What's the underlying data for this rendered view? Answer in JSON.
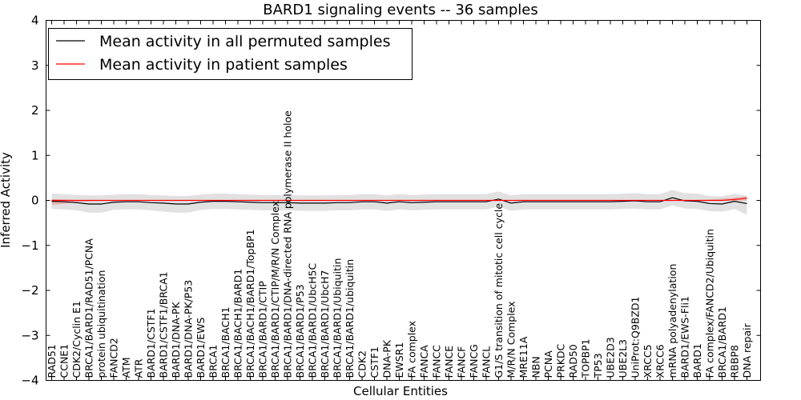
{
  "chart_data": {
    "type": "line",
    "title": "BARD1 signaling events -- 36 samples",
    "xlabel": "Cellular Entities",
    "ylabel": "Inferred Activity",
    "ylim": [
      -4,
      4
    ],
    "yticks": [
      -4,
      -3,
      -2,
      -1,
      0,
      1,
      2,
      3,
      4
    ],
    "ytick_labels": [
      "−4",
      "−3",
      "−2",
      "−1",
      "0",
      "1",
      "2",
      "3",
      "4"
    ],
    "legend_position": "top-left",
    "grid": false,
    "categories": [
      "RAD51",
      "CCNE1",
      "CDK2/Cyclin E1",
      "BRCA1/BARD1/RAD51/PCNA",
      "protein ubiquitination",
      "FANCD2",
      "ATM",
      "ATR",
      "BARD1/CSTF1",
      "BARD1/CSTF1/BRCA1",
      "BARD1/DNA-PK",
      "BARD1/DNA-PK/P53",
      "BARD1/EWS",
      "BRCA1",
      "BRCA1/BACH1",
      "BRCA1/BACH1/BARD1",
      "BRCA1/BACH1/BARD1/TopBP1",
      "BRCA1/BARD1/CTIP",
      "BRCA1/BARD1/CTIP/M/R/N Complex",
      "BRCA1/BARD1/DNA-directed RNA polymerase II holoe",
      "BRCA1/BARD1/P53",
      "BRCA1/BARD1/UbcH5C",
      "BRCA1/BARD1/UbcH7",
      "BRCA1/BARD1/Ubiquitin",
      "BRCA1/BARD1/ubiquitin",
      "CDK2",
      "CSTF1",
      "DNA-PK",
      "EWSR1",
      "FA complex",
      "FANCA",
      "FANCC",
      "FANCE",
      "FANCF",
      "FANCG",
      "FANCL",
      "G1/S transition of mitotic cell cycle",
      "M/R/N Complex",
      "MRE11A",
      "NBN",
      "PCNA",
      "PRKDC",
      "RAD50",
      "TOPBP1",
      "TP53",
      "UBE2D3",
      "UBE2L3",
      "UniProt:Q9BZD1",
      "XRCC5",
      "XRCC6",
      "mRNA polyadenylation",
      "BARD1/EWS-Fli1",
      "BARD1",
      "FA complex/FANCD2/Ubiquitin",
      "BRCA1/BARD1",
      "RBBP8",
      "DNA repair"
    ],
    "series": [
      {
        "name": "Mean activity in all permuted samples",
        "color": "#000000",
        "values": [
          -0.02,
          -0.03,
          -0.05,
          -0.08,
          -0.08,
          -0.04,
          -0.03,
          -0.03,
          -0.05,
          -0.06,
          -0.08,
          -0.08,
          -0.04,
          -0.02,
          -0.02,
          -0.03,
          -0.04,
          -0.05,
          -0.05,
          -0.05,
          -0.06,
          -0.06,
          -0.06,
          -0.05,
          -0.05,
          -0.03,
          -0.03,
          -0.06,
          -0.03,
          -0.05,
          -0.04,
          -0.03,
          -0.03,
          -0.03,
          -0.03,
          -0.03,
          0.03,
          -0.06,
          -0.03,
          -0.03,
          -0.03,
          -0.03,
          -0.03,
          -0.03,
          -0.03,
          -0.03,
          -0.02,
          -0.01,
          -0.03,
          -0.03,
          0.06,
          -0.01,
          -0.02,
          -0.07,
          -0.08,
          -0.02,
          -0.07
        ],
        "band_upper": [
          0.15,
          0.14,
          0.12,
          0.11,
          0.11,
          0.13,
          0.14,
          0.14,
          0.12,
          0.11,
          0.1,
          0.1,
          0.13,
          0.15,
          0.15,
          0.14,
          0.13,
          0.12,
          0.12,
          0.12,
          0.11,
          0.11,
          0.11,
          0.12,
          0.12,
          0.14,
          0.14,
          0.11,
          0.14,
          0.12,
          0.13,
          0.14,
          0.14,
          0.14,
          0.14,
          0.14,
          0.2,
          0.11,
          0.14,
          0.14,
          0.14,
          0.14,
          0.14,
          0.14,
          0.14,
          0.14,
          0.15,
          0.16,
          0.14,
          0.14,
          0.23,
          0.16,
          0.15,
          0.1,
          0.09,
          0.15,
          0.1
        ],
        "band_lower": [
          -0.19,
          -0.2,
          -0.22,
          -0.27,
          -0.27,
          -0.21,
          -0.2,
          -0.2,
          -0.22,
          -0.25,
          -0.27,
          -0.27,
          -0.21,
          -0.19,
          -0.19,
          -0.2,
          -0.21,
          -0.22,
          -0.22,
          -0.22,
          -0.23,
          -0.23,
          -0.23,
          -0.22,
          -0.22,
          -0.2,
          -0.2,
          -0.23,
          -0.2,
          -0.22,
          -0.21,
          -0.2,
          -0.2,
          -0.2,
          -0.2,
          -0.2,
          -0.14,
          -0.23,
          -0.2,
          -0.2,
          -0.2,
          -0.2,
          -0.2,
          -0.2,
          -0.2,
          -0.2,
          -0.19,
          -0.18,
          -0.2,
          -0.2,
          -0.11,
          -0.18,
          -0.19,
          -0.24,
          -0.25,
          -0.19,
          -0.32
        ]
      },
      {
        "name": "Mean activity in patient samples",
        "color": "#ff0000",
        "values": [
          0.0,
          0.0,
          0.0,
          0.0,
          0.0,
          0.0,
          0.0,
          0.0,
          0.0,
          0.0,
          0.0,
          0.0,
          0.0,
          0.0,
          0.0,
          0.0,
          0.0,
          0.0,
          0.0,
          0.0,
          0.0,
          0.0,
          0.0,
          0.0,
          0.0,
          0.0,
          0.0,
          0.0,
          0.0,
          0.0,
          0.0,
          0.0,
          0.0,
          0.0,
          0.0,
          0.0,
          0.0,
          0.0,
          0.0,
          0.0,
          0.0,
          0.0,
          0.0,
          0.0,
          0.0,
          0.0,
          0.0,
          0.0,
          0.0,
          0.0,
          0.0,
          0.0,
          0.0,
          0.0,
          0.0,
          0.02,
          0.05
        ],
        "band_upper": [
          0.03,
          0.02,
          0.01,
          0.01,
          0.01,
          0.01,
          0.01,
          0.01,
          0.01,
          0.01,
          0.01,
          0.01,
          0.01,
          0.01,
          0.01,
          0.01,
          0.01,
          0.01,
          0.01,
          0.01,
          0.01,
          0.01,
          0.01,
          0.01,
          0.01,
          0.01,
          0.01,
          0.01,
          0.01,
          0.01,
          0.01,
          0.01,
          0.01,
          0.01,
          0.01,
          0.01,
          0.01,
          0.01,
          0.01,
          0.01,
          0.01,
          0.01,
          0.01,
          0.01,
          0.01,
          0.01,
          0.01,
          0.01,
          0.01,
          0.01,
          0.01,
          0.01,
          0.01,
          0.02,
          0.04,
          0.06,
          0.09
        ],
        "band_lower": [
          -0.1,
          -0.08,
          -0.04,
          -0.02,
          -0.01,
          -0.01,
          -0.01,
          -0.01,
          -0.01,
          -0.01,
          -0.01,
          -0.01,
          -0.01,
          -0.01,
          -0.01,
          -0.01,
          -0.01,
          -0.01,
          -0.01,
          -0.01,
          -0.01,
          -0.01,
          -0.01,
          -0.01,
          -0.01,
          -0.01,
          -0.01,
          -0.01,
          -0.01,
          -0.01,
          -0.01,
          -0.01,
          -0.01,
          -0.01,
          -0.01,
          -0.01,
          -0.01,
          -0.01,
          -0.01,
          -0.01,
          -0.01,
          -0.01,
          -0.01,
          -0.01,
          -0.01,
          -0.01,
          -0.01,
          -0.01,
          -0.01,
          -0.01,
          -0.01,
          -0.01,
          -0.01,
          -0.01,
          -0.01,
          -0.01,
          0.0
        ]
      }
    ]
  }
}
